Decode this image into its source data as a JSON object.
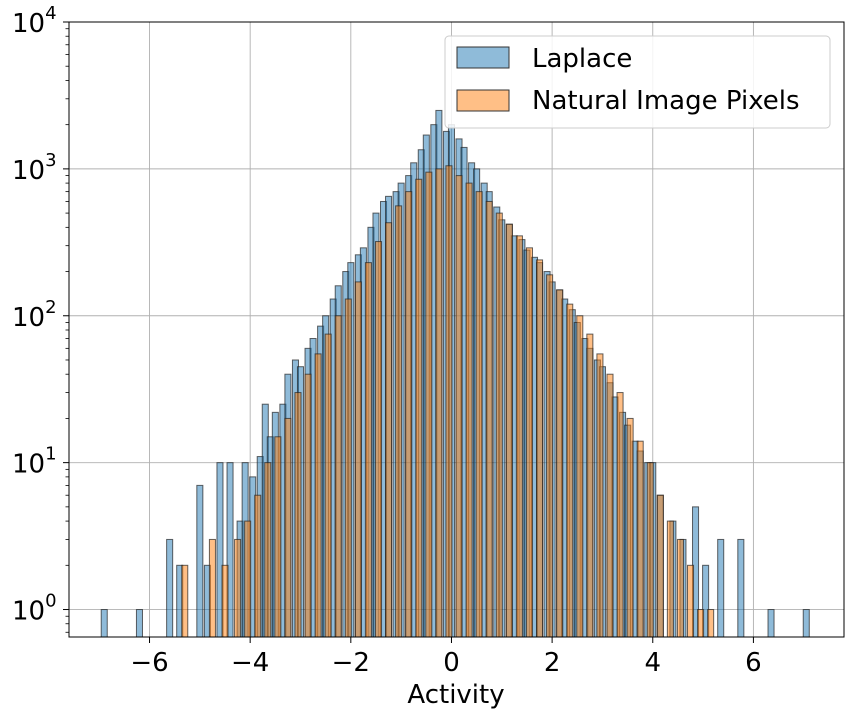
{
  "chart_data": {
    "type": "bar",
    "title": "",
    "xlabel": "Activity",
    "ylabel": "",
    "yscale": "log",
    "xlim": [
      -7.6,
      7.8
    ],
    "ylim": [
      0.65,
      10000
    ],
    "grid": true,
    "legend_position": "top-right",
    "bin_width": 0.12,
    "xticks": [
      -6,
      -4,
      -2,
      0,
      2,
      4,
      6
    ],
    "xtick_labels": [
      "−6",
      "−4",
      "−2",
      "0",
      "2",
      "4",
      "6"
    ],
    "yticks": [
      1,
      10,
      100,
      1000,
      10000
    ],
    "ytick_labels": [
      {
        "base": "10",
        "exp": "0"
      },
      {
        "base": "10",
        "exp": "1"
      },
      {
        "base": "10",
        "exp": "2"
      },
      {
        "base": "10",
        "exp": "3"
      },
      {
        "base": "10",
        "exp": "4"
      }
    ],
    "series": [
      {
        "name": "Laplace",
        "color": "#1f77b4",
        "x": [
          -6.9,
          -6.2,
          -5.6,
          -5.4,
          -5.0,
          -4.85,
          -4.6,
          -4.4,
          -4.2,
          -4.1,
          -3.95,
          -3.8,
          -3.7,
          -3.6,
          -3.5,
          -3.35,
          -3.25,
          -3.1,
          -3.0,
          -2.85,
          -2.75,
          -2.6,
          -2.5,
          -2.35,
          -2.25,
          -2.1,
          -2.0,
          -1.85,
          -1.75,
          -1.6,
          -1.5,
          -1.35,
          -1.25,
          -1.1,
          -1.0,
          -0.85,
          -0.75,
          -0.6,
          -0.5,
          -0.35,
          -0.25,
          -0.1,
          0.0,
          0.15,
          0.25,
          0.4,
          0.5,
          0.65,
          0.75,
          0.9,
          1.0,
          1.15,
          1.25,
          1.4,
          1.5,
          1.65,
          1.75,
          1.9,
          2.0,
          2.15,
          2.25,
          2.4,
          2.5,
          2.65,
          2.75,
          2.9,
          3.0,
          3.15,
          3.25,
          3.4,
          3.5,
          3.65,
          3.75,
          3.9,
          4.0,
          4.15,
          4.4,
          4.6,
          4.85,
          5.05,
          5.35,
          5.75,
          6.35,
          7.05
        ],
        "values": [
          1,
          1,
          3,
          2,
          7,
          2,
          10,
          10,
          4,
          10,
          8,
          11,
          25,
          15,
          22,
          25,
          40,
          50,
          45,
          60,
          70,
          85,
          100,
          130,
          160,
          200,
          230,
          260,
          290,
          400,
          500,
          600,
          650,
          700,
          800,
          900,
          1100,
          1350,
          1700,
          2000,
          2500,
          1800,
          2000,
          1600,
          1400,
          1100,
          1000,
          800,
          700,
          550,
          450,
          420,
          350,
          330,
          280,
          250,
          230,
          200,
          170,
          150,
          130,
          110,
          90,
          70,
          60,
          50,
          45,
          35,
          28,
          22,
          18,
          14,
          12,
          10,
          10,
          6,
          4,
          3,
          5,
          2,
          3,
          3,
          1,
          1
        ]
      },
      {
        "name": "Natural Image Pixels",
        "color": "#ff7f0e",
        "x": [
          -5.3,
          -4.75,
          -4.5,
          -4.25,
          -4.05,
          -3.85,
          -3.65,
          -3.45,
          -3.25,
          -3.05,
          -2.85,
          -2.65,
          -2.45,
          -2.25,
          -2.05,
          -1.85,
          -1.65,
          -1.45,
          -1.25,
          -1.05,
          -0.85,
          -0.65,
          -0.45,
          -0.25,
          -0.05,
          0.15,
          0.35,
          0.55,
          0.75,
          0.95,
          1.15,
          1.35,
          1.55,
          1.75,
          1.95,
          2.15,
          2.35,
          2.55,
          2.75,
          2.95,
          3.15,
          3.35,
          3.55,
          3.75,
          3.95,
          4.15,
          4.35,
          4.55,
          4.75,
          4.95,
          5.15
        ],
        "values": [
          2,
          3,
          2,
          3,
          4,
          6,
          10,
          15,
          20,
          30,
          40,
          55,
          75,
          100,
          130,
          170,
          230,
          320,
          430,
          560,
          700,
          850,
          950,
          1000,
          1050,
          900,
          800,
          700,
          600,
          500,
          420,
          350,
          290,
          240,
          190,
          150,
          120,
          100,
          75,
          55,
          40,
          30,
          20,
          14,
          10,
          6,
          4,
          3,
          2,
          1,
          1
        ]
      }
    ]
  }
}
